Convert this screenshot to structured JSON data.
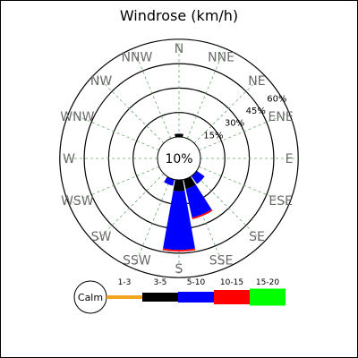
{
  "chart_data": {
    "type": "windrose",
    "title": "Windrose (km/h)",
    "center_label": "10%",
    "calm_label": "Calm",
    "ring_labels": [
      "15%",
      "30%",
      "45%",
      "60%"
    ],
    "ring_values": [
      15,
      30,
      45,
      60
    ],
    "directions": [
      "N",
      "NNE",
      "NE",
      "ENE",
      "E",
      "ESE",
      "SE",
      "SSE",
      "S",
      "SSW",
      "SW",
      "WSW",
      "W",
      "WNW",
      "NW",
      "NNW"
    ],
    "speed_bins": [
      {
        "label": "1-3",
        "color": "#f0a420"
      },
      {
        "label": "3-5",
        "color": "#000000"
      },
      {
        "label": "5-10",
        "color": "#0000ff"
      },
      {
        "label": "10-15",
        "color": "#ff0000"
      },
      {
        "label": "15-20",
        "color": "#00ff00"
      }
    ],
    "series": [
      {
        "direction": "N",
        "values": [
          0,
          2,
          0,
          0,
          0
        ]
      },
      {
        "direction": "NNE",
        "values": [
          0,
          0,
          0,
          0,
          0
        ]
      },
      {
        "direction": "NE",
        "values": [
          0,
          0,
          0,
          0,
          0
        ]
      },
      {
        "direction": "ENE",
        "values": [
          0,
          0,
          0,
          0,
          0
        ]
      },
      {
        "direction": "E",
        "values": [
          0,
          0,
          0,
          0,
          0
        ]
      },
      {
        "direction": "ESE",
        "values": [
          0,
          0,
          0,
          0,
          0
        ]
      },
      {
        "direction": "SE",
        "values": [
          0,
          0,
          6,
          0,
          0
        ]
      },
      {
        "direction": "SSE",
        "values": [
          0,
          6,
          18,
          1,
          0
        ]
      },
      {
        "direction": "S",
        "values": [
          0,
          7,
          36,
          1,
          0
        ]
      },
      {
        "direction": "SSW",
        "values": [
          0,
          0,
          4,
          0,
          0
        ]
      },
      {
        "direction": "SW",
        "values": [
          0,
          0,
          0,
          0,
          0
        ]
      },
      {
        "direction": "WSW",
        "values": [
          0,
          0,
          0,
          0,
          0
        ]
      },
      {
        "direction": "W",
        "values": [
          0,
          0,
          0,
          0,
          0
        ]
      },
      {
        "direction": "WNW",
        "values": [
          0,
          0,
          0,
          0,
          0
        ]
      },
      {
        "direction": "NW",
        "values": [
          0,
          0,
          0,
          0,
          0
        ]
      },
      {
        "direction": "NNW",
        "values": [
          0,
          0,
          0,
          0,
          0
        ]
      }
    ],
    "legend_placement": "bottom",
    "grid": true
  }
}
